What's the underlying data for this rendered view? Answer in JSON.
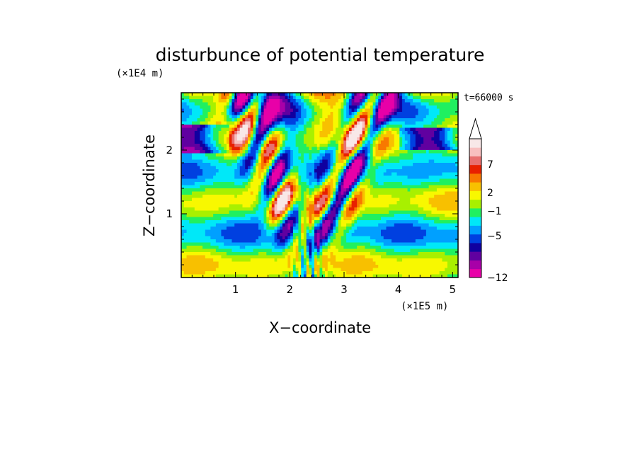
{
  "chart_data": {
    "type": "heatmap",
    "title": "disturbunce of potential temperature",
    "time_label": "t=66000 s",
    "xlabel": "X−coordinate",
    "ylabel": "Z−coordinate",
    "x_unit_label": "(×1E5 m)",
    "y_unit_label": "(×1E4 m)",
    "xlim": [
      0,
      5.1
    ],
    "ylim": [
      0,
      2.9
    ],
    "x_ticks": [
      1,
      2,
      3,
      4,
      5
    ],
    "y_ticks": [
      1,
      2
    ],
    "colorbar": {
      "tick_labels": [
        "7",
        "2",
        "−1",
        "−5",
        "−12"
      ],
      "colors": [
        "#e800a8",
        "#a800a8",
        "#6000a0",
        "#1000a0",
        "#0040e0",
        "#00a0ff",
        "#00e8f8",
        "#20f060",
        "#a8f000",
        "#f8f800",
        "#f8c000",
        "#f87800",
        "#e82000",
        "#e87070",
        "#f8c0c0",
        "#f8e8e8"
      ],
      "extend": "max"
    }
  }
}
